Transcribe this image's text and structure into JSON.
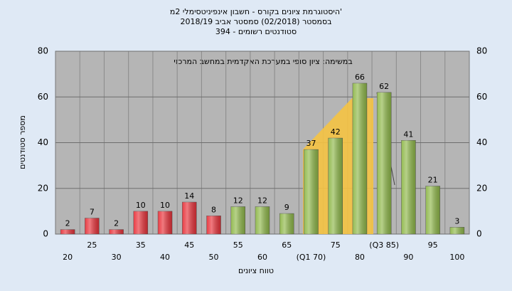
{
  "chart_data": {
    "type": "bar",
    "title": "היסטוגרמת ציונים בקורס - חשבון אינפיניטסימלי 2מ'",
    "subtitle": "בסמסטר (02/2018) סמסטר אביב 2018/19",
    "subtitle2": "394 - סטודנטים רשומים",
    "annotation": "במשימה: ציון סופי במערכת האקדמית במחשב המרכזי",
    "x_label": "טווח ציונים",
    "y_label": "מספר סטודנטים",
    "categories": [
      "20",
      "25",
      "30",
      "35",
      "40",
      "45",
      "50",
      "55",
      "60",
      "65",
      "(Q1 70)",
      "75",
      "80",
      "(Q3 85)",
      "90",
      "95",
      "100"
    ],
    "values": [
      2,
      7,
      2,
      10,
      10,
      14,
      8,
      12,
      12,
      9,
      37,
      42,
      66,
      62,
      41,
      21,
      3
    ],
    "colors": [
      "#e8323a",
      "#e8323a",
      "#e8323a",
      "#e8323a",
      "#e8323a",
      "#e8323a",
      "#e8323a",
      "#8fb84a",
      "#8fb84a",
      "#8fb84a",
      "#8fb84a",
      "#8fb84a",
      "#8fb84a",
      "#8fb84a",
      "#8fb84a",
      "#8fb84a",
      "#8fb84a"
    ],
    "ylim": [
      0,
      80
    ],
    "yticks": [
      0,
      20,
      40,
      60,
      80
    ],
    "grid": true
  }
}
